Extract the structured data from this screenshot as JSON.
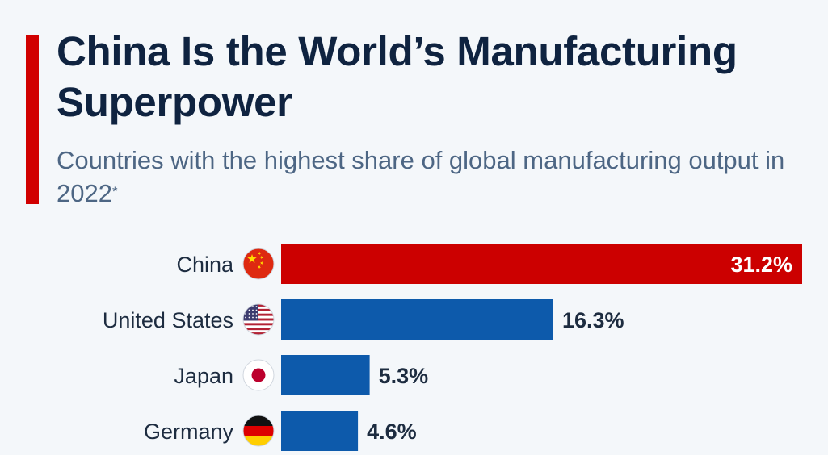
{
  "header": {
    "title": "China Is the World’s Manufacturing Superpower",
    "subtitle": "Countries with the highest share of global manufacturing output in 2022",
    "subtitle_mark": "*"
  },
  "colors": {
    "accent": "#d10000",
    "highlight_bar": "#cc0000",
    "bar": "#0d5aab",
    "title": "#0f2340",
    "subtitle": "#4d6684",
    "label": "#1d2c40"
  },
  "chart_data": {
    "type": "bar",
    "orientation": "horizontal",
    "categories": [
      "China",
      "United States",
      "Japan",
      "Germany"
    ],
    "values": [
      31.2,
      16.3,
      5.3,
      4.6
    ],
    "value_labels": [
      "31.2%",
      "16.3%",
      "5.3%",
      "4.6%"
    ],
    "flags": [
      "china-flag-icon",
      "us-flag-icon",
      "japan-flag-icon",
      "germany-flag-icon"
    ],
    "highlight_index": 0,
    "xlim": [
      0,
      31.2
    ],
    "grid": false
  }
}
